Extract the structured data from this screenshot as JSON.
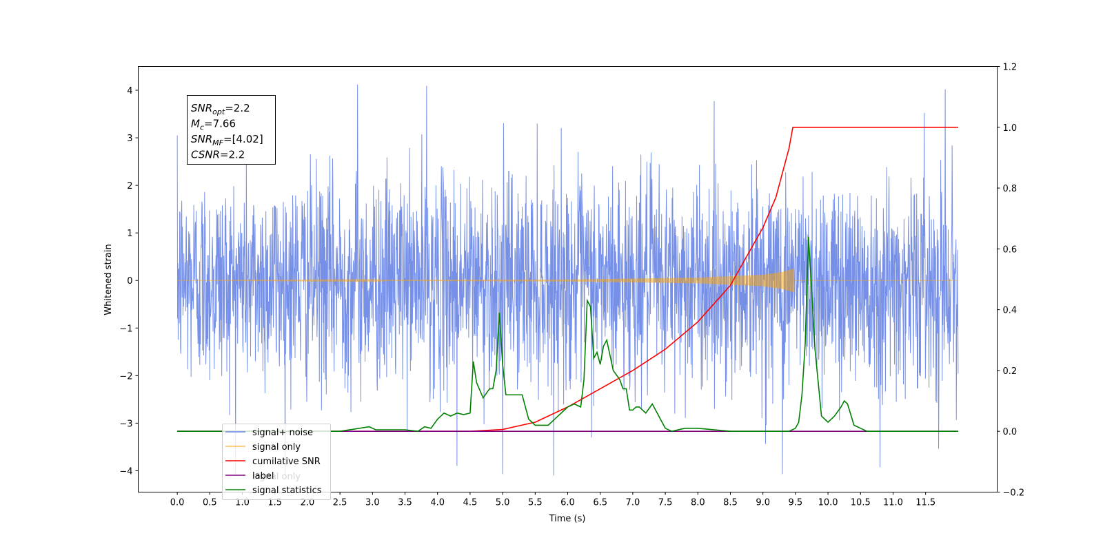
{
  "chart_data": {
    "type": "line",
    "xlabel": "Time (s)",
    "ylabel": "Whitened strain",
    "xlim": [
      -0.6,
      12.6
    ],
    "ylim": [
      -4.45,
      4.5
    ],
    "ylim_right": [
      -0.2,
      1.2
    ],
    "x_ticks": [
      0.0,
      0.5,
      1.0,
      1.5,
      2.0,
      2.5,
      3.0,
      3.5,
      4.0,
      4.5,
      5.0,
      5.5,
      6.0,
      6.5,
      7.0,
      7.5,
      8.0,
      8.5,
      9.0,
      9.5,
      10.0,
      10.5,
      11.0,
      11.5
    ],
    "x_tick_labels": [
      "0.0",
      "0.5",
      "1.0",
      "1.5",
      "2.0",
      "2.5",
      "3.0",
      "3.5",
      "4.0",
      "4.5",
      "5.0",
      "5.5",
      "6.0",
      "6.5",
      "7.0",
      "7.5",
      "8.0",
      "8.5",
      "9.0",
      "9.5",
      "10.0",
      "10.5",
      "11.0",
      "11.5"
    ],
    "y_ticks": [
      -4,
      -3,
      -2,
      -1,
      0,
      1,
      2,
      3,
      4
    ],
    "y_tick_labels": [
      "−4",
      "−3",
      "−2",
      "−1",
      "0",
      "1",
      "2",
      "3",
      "4"
    ],
    "y_right_ticks": [
      -0.2,
      0.0,
      0.2,
      0.4,
      0.6,
      0.8,
      1.0,
      1.2
    ],
    "y_right_tick_labels": [
      "−0.2",
      "0.0",
      "0.2",
      "0.4",
      "0.6",
      "0.8",
      "1.0",
      "1.2"
    ],
    "legend_placement": "lower-left",
    "annotation": {
      "lines": [
        {
          "base": "SNR",
          "sub": "opt",
          "rest": "=2.2"
        },
        {
          "base": "M",
          "sub": "c",
          "rest": "=7.66"
        },
        {
          "base": "SNR",
          "sub": "MF",
          "rest": "=[4.02]"
        },
        {
          "base": "CSNR",
          "sub": "",
          "rest": "=2.2"
        }
      ]
    },
    "series": [
      {
        "name": "signal+ noise",
        "color": "#6a87e6",
        "axis": "left",
        "description_values": {
          "x_range": [
            0.0,
            12.0
          ],
          "typical_envelope": [
            -2.5,
            2.5
          ],
          "peaks": [
            [
              2.77,
              4.12
            ],
            [
              3.83,
              4.09
            ],
            [
              11.8,
              4.02
            ],
            [
              5.0,
              -4.07
            ],
            [
              9.3,
              -4.07
            ],
            [
              4.3,
              -3.9
            ],
            [
              10.8,
              -3.93
            ]
          ]
        }
      },
      {
        "name": "signal only",
        "color": "#ffa500",
        "axis": "left",
        "description_values": {
          "x_range": [
            0.0,
            9.48
          ],
          "amplitude_points": [
            [
              0.0,
              0.0
            ],
            [
              6.0,
              0.02
            ],
            [
              8.0,
              0.06
            ],
            [
              9.0,
              0.12
            ],
            [
              9.3,
              0.18
            ],
            [
              9.48,
              0.25
            ]
          ]
        }
      },
      {
        "name": "cumilative SNR",
        "color": "#ff0000",
        "axis": "right",
        "x": [
          0.0,
          4.5,
          5.0,
          5.5,
          6.0,
          6.5,
          7.0,
          7.5,
          8.0,
          8.5,
          9.0,
          9.2,
          9.4,
          9.46,
          9.47,
          11.5,
          12.0
        ],
        "values": [
          0.0,
          0.0,
          0.006,
          0.03,
          0.08,
          0.14,
          0.2,
          0.27,
          0.36,
          0.48,
          0.67,
          0.77,
          0.93,
          1.0,
          1.0,
          1.0,
          1.0
        ]
      },
      {
        "name": "label",
        "color": "#800080",
        "axis": "right",
        "x": [
          0.0,
          12.0
        ],
        "values": [
          0.0,
          0.0
        ]
      },
      {
        "name": "signal statistics",
        "color": "#008000",
        "axis": "right",
        "x": [
          0.0,
          2.5,
          2.95,
          3.05,
          3.2,
          3.5,
          3.7,
          3.8,
          3.9,
          4.0,
          4.1,
          4.2,
          4.3,
          4.4,
          4.5,
          4.55,
          4.6,
          4.7,
          4.8,
          4.85,
          4.9,
          4.95,
          5.0,
          5.05,
          5.1,
          5.2,
          5.3,
          5.4,
          5.5,
          5.6,
          5.7,
          5.8,
          5.9,
          6.0,
          6.1,
          6.2,
          6.25,
          6.3,
          6.35,
          6.4,
          6.45,
          6.5,
          6.55,
          6.6,
          6.7,
          6.8,
          6.85,
          6.9,
          6.95,
          7.0,
          7.05,
          7.1,
          7.2,
          7.3,
          7.4,
          7.5,
          7.6,
          7.8,
          8.0,
          8.5,
          9.0,
          9.3,
          9.4,
          9.5,
          9.55,
          9.6,
          9.65,
          9.7,
          9.75,
          9.8,
          9.9,
          10.0,
          10.05,
          10.1,
          10.2,
          10.25,
          10.3,
          10.4,
          10.5,
          10.6,
          11.0,
          11.3,
          12.0
        ],
        "values": [
          0.0,
          0.0,
          0.015,
          0.005,
          0.005,
          0.005,
          0.0,
          0.015,
          0.01,
          0.04,
          0.06,
          0.05,
          0.06,
          0.055,
          0.06,
          0.23,
          0.16,
          0.11,
          0.14,
          0.14,
          0.2,
          0.39,
          0.22,
          0.12,
          0.12,
          0.12,
          0.12,
          0.04,
          0.02,
          0.02,
          0.02,
          0.04,
          0.06,
          0.08,
          0.09,
          0.08,
          0.17,
          0.43,
          0.41,
          0.24,
          0.26,
          0.22,
          0.28,
          0.3,
          0.2,
          0.17,
          0.14,
          0.14,
          0.07,
          0.07,
          0.08,
          0.08,
          0.06,
          0.09,
          0.05,
          0.01,
          0.0,
          0.01,
          0.01,
          0.0,
          0.0,
          0.0,
          0.0,
          0.01,
          0.03,
          0.12,
          0.29,
          0.64,
          0.46,
          0.27,
          0.05,
          0.03,
          0.04,
          0.05,
          0.08,
          0.1,
          0.09,
          0.02,
          0.01,
          0.0,
          0.0,
          0.0,
          0.0
        ]
      }
    ],
    "legend": [
      {
        "label": "signal+ noise",
        "color": "#6a87e6"
      },
      {
        "label": "signal only",
        "color": "#ffc04d"
      },
      {
        "label": "cumilative SNR",
        "color": "#ff0000"
      },
      {
        "label": "label",
        "color": "#800080",
        "overlap_text": "signal only"
      },
      {
        "label": "signal statistics",
        "color": "#008000"
      }
    ]
  }
}
